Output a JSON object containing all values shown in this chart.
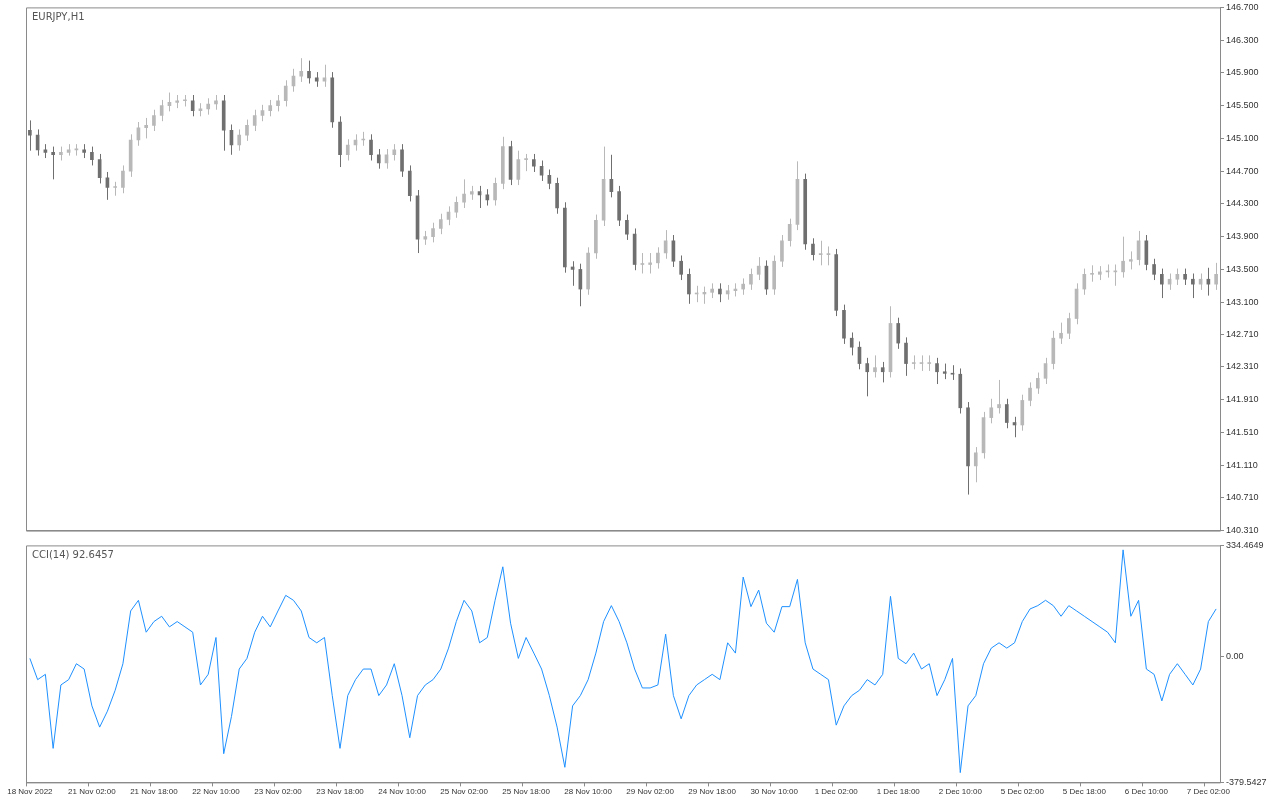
{
  "chart_data": [
    {
      "type": "candlestick",
      "title": "EURJPY,H1",
      "tick_labels": "y",
      "ylim": [
        140.31,
        146.7
      ],
      "yticks": [
        {
          "value": 146.7,
          "label": "146.700"
        },
        {
          "value": 146.3,
          "label": "146.300"
        },
        {
          "value": 145.9,
          "label": "145.900"
        },
        {
          "value": 145.5,
          "label": "145.500"
        },
        {
          "value": 145.1,
          "label": "145.100"
        },
        {
          "value": 144.7,
          "label": "144.700"
        },
        {
          "value": 144.3,
          "label": "144.300"
        },
        {
          "value": 143.9,
          "label": "143.900"
        },
        {
          "value": 143.5,
          "label": "143.500"
        },
        {
          "value": 143.1,
          "label": "143.100"
        },
        {
          "value": 142.71,
          "label": "142.710"
        },
        {
          "value": 142.31,
          "label": "142.310"
        },
        {
          "value": 141.91,
          "label": "141.910"
        },
        {
          "value": 141.51,
          "label": "141.510"
        },
        {
          "value": 141.11,
          "label": "141.110"
        },
        {
          "value": 140.71,
          "label": "140.710"
        },
        {
          "value": 140.31,
          "label": "140.310"
        }
      ],
      "ohlc": [
        [
          145.2,
          145.32,
          144.95,
          145.14
        ],
        [
          145.14,
          145.21,
          144.89,
          144.96
        ],
        [
          144.96,
          145.03,
          144.86,
          144.93
        ],
        [
          144.93,
          145.0,
          144.6,
          144.9
        ],
        [
          144.9,
          145.0,
          144.83,
          144.93
        ],
        [
          144.93,
          145.03,
          144.89,
          144.96
        ],
        [
          144.96,
          145.03,
          144.89,
          144.96
        ],
        [
          144.96,
          145.03,
          144.86,
          144.93
        ],
        [
          144.93,
          145.0,
          144.77,
          144.84
        ],
        [
          144.84,
          144.91,
          144.55,
          144.62
        ],
        [
          144.62,
          144.69,
          144.35,
          144.5
        ],
        [
          144.5,
          144.57,
          144.4,
          144.5
        ],
        [
          144.5,
          144.77,
          144.43,
          144.7
        ],
        [
          144.7,
          145.15,
          144.63,
          145.08
        ],
        [
          145.08,
          145.3,
          145.01,
          145.23
        ],
        [
          145.23,
          145.35,
          145.1,
          145.26
        ],
        [
          145.26,
          145.45,
          145.19,
          145.38
        ],
        [
          145.38,
          145.57,
          145.31,
          145.5
        ],
        [
          145.5,
          145.66,
          145.43,
          145.54
        ],
        [
          145.54,
          145.63,
          145.47,
          145.56
        ],
        [
          145.56,
          145.63,
          145.49,
          145.56
        ],
        [
          145.56,
          145.63,
          145.37,
          145.44
        ],
        [
          145.44,
          145.53,
          145.37,
          145.46
        ],
        [
          145.46,
          145.59,
          145.39,
          145.52
        ],
        [
          145.52,
          145.63,
          145.45,
          145.56
        ],
        [
          145.56,
          145.63,
          144.95,
          145.2
        ],
        [
          145.2,
          145.27,
          144.9,
          145.02
        ],
        [
          145.02,
          145.21,
          144.95,
          145.14
        ],
        [
          145.14,
          145.33,
          145.07,
          145.26
        ],
        [
          145.26,
          145.45,
          145.19,
          145.38
        ],
        [
          145.38,
          145.51,
          145.31,
          145.44
        ],
        [
          145.44,
          145.57,
          145.37,
          145.5
        ],
        [
          145.5,
          145.63,
          145.43,
          145.56
        ],
        [
          145.56,
          145.81,
          145.49,
          145.74
        ],
        [
          145.74,
          145.95,
          145.67,
          145.86
        ],
        [
          145.86,
          146.08,
          145.79,
          145.92
        ],
        [
          145.92,
          146.05,
          145.77,
          145.84
        ],
        [
          145.84,
          145.91,
          145.73,
          145.8
        ],
        [
          145.8,
          146.0,
          145.73,
          145.84
        ],
        [
          145.84,
          145.91,
          145.23,
          145.3
        ],
        [
          145.3,
          145.37,
          144.75,
          144.9
        ],
        [
          144.9,
          145.09,
          144.83,
          145.02
        ],
        [
          145.02,
          145.15,
          144.95,
          145.08
        ],
        [
          145.08,
          145.18,
          145.01,
          145.08
        ],
        [
          145.08,
          145.15,
          144.83,
          144.9
        ],
        [
          144.9,
          144.97,
          144.73,
          144.8
        ],
        [
          144.8,
          144.97,
          144.73,
          144.9
        ],
        [
          144.9,
          145.03,
          144.83,
          144.96
        ],
        [
          144.96,
          145.03,
          144.63,
          144.7
        ],
        [
          144.7,
          144.77,
          144.33,
          144.4
        ],
        [
          144.4,
          144.47,
          143.7,
          143.87
        ],
        [
          143.87,
          143.97,
          143.8,
          143.9
        ],
        [
          143.9,
          144.07,
          143.83,
          144.0
        ],
        [
          144.0,
          144.18,
          143.93,
          144.11
        ],
        [
          144.11,
          144.27,
          144.04,
          144.2
        ],
        [
          144.2,
          144.39,
          144.13,
          144.32
        ],
        [
          144.32,
          144.6,
          144.25,
          144.42
        ],
        [
          144.42,
          144.52,
          144.35,
          144.45
        ],
        [
          144.45,
          144.52,
          144.25,
          144.41
        ],
        [
          144.41,
          144.48,
          144.28,
          144.35
        ],
        [
          144.35,
          144.62,
          144.28,
          144.55
        ],
        [
          144.55,
          145.12,
          144.48,
          145.0
        ],
        [
          145.0,
          145.07,
          144.53,
          144.6
        ],
        [
          144.6,
          144.95,
          144.53,
          144.84
        ],
        [
          144.84,
          144.91,
          144.7,
          144.84
        ],
        [
          144.84,
          144.91,
          144.69,
          144.76
        ],
        [
          144.76,
          144.83,
          144.58,
          144.65
        ],
        [
          144.65,
          144.72,
          144.48,
          144.55
        ],
        [
          144.55,
          144.62,
          144.18,
          144.25
        ],
        [
          144.25,
          144.32,
          143.46,
          143.53
        ],
        [
          143.53,
          143.6,
          143.3,
          143.5
        ],
        [
          143.5,
          143.57,
          143.05,
          143.26
        ],
        [
          143.26,
          143.77,
          143.19,
          143.7
        ],
        [
          143.7,
          144.17,
          143.63,
          144.1
        ],
        [
          144.1,
          145.0,
          144.03,
          144.6
        ],
        [
          144.6,
          144.9,
          144.38,
          144.45
        ],
        [
          144.45,
          144.52,
          144.03,
          144.1
        ],
        [
          144.1,
          144.17,
          143.86,
          143.93
        ],
        [
          143.93,
          144.0,
          143.49,
          143.56
        ],
        [
          143.56,
          143.7,
          143.45,
          143.56
        ],
        [
          143.56,
          143.7,
          143.45,
          143.58
        ],
        [
          143.58,
          143.77,
          143.51,
          143.7
        ],
        [
          143.7,
          143.98,
          143.63,
          143.85
        ],
        [
          143.85,
          143.92,
          143.53,
          143.6
        ],
        [
          143.6,
          143.67,
          143.37,
          143.44
        ],
        [
          143.44,
          143.51,
          143.08,
          143.2
        ],
        [
          143.2,
          143.3,
          143.1,
          143.2
        ],
        [
          143.2,
          143.29,
          143.08,
          143.22
        ],
        [
          143.22,
          143.33,
          143.15,
          143.26
        ],
        [
          143.26,
          143.33,
          143.1,
          143.2
        ],
        [
          143.2,
          143.31,
          143.13,
          143.24
        ],
        [
          143.24,
          143.33,
          143.17,
          143.26
        ],
        [
          143.26,
          143.39,
          143.19,
          143.32
        ],
        [
          143.32,
          143.51,
          143.25,
          143.44
        ],
        [
          143.44,
          143.65,
          143.37,
          143.54
        ],
        [
          143.54,
          143.61,
          143.19,
          143.26
        ],
        [
          143.26,
          143.67,
          143.19,
          143.6
        ],
        [
          143.6,
          143.92,
          143.53,
          143.85
        ],
        [
          143.85,
          144.12,
          143.78,
          144.05
        ],
        [
          144.05,
          144.82,
          143.98,
          144.6
        ],
        [
          144.6,
          144.67,
          143.74,
          143.81
        ],
        [
          143.81,
          143.88,
          143.61,
          143.68
        ],
        [
          143.68,
          143.85,
          143.55,
          143.68
        ],
        [
          143.68,
          143.78,
          143.55,
          143.68
        ],
        [
          143.68,
          143.75,
          142.93,
          143.0
        ],
        [
          143.0,
          143.07,
          142.59,
          142.66
        ],
        [
          142.66,
          142.73,
          142.45,
          142.55
        ],
        [
          142.55,
          142.62,
          142.28,
          142.35
        ],
        [
          142.35,
          142.42,
          141.95,
          142.25
        ],
        [
          142.25,
          142.45,
          142.18,
          142.3
        ],
        [
          142.3,
          142.37,
          142.12,
          142.25
        ],
        [
          142.25,
          143.05,
          142.18,
          142.84
        ],
        [
          142.84,
          142.91,
          142.53,
          142.6
        ],
        [
          142.6,
          142.67,
          142.2,
          142.35
        ],
        [
          142.35,
          142.45,
          142.28,
          142.35
        ],
        [
          142.35,
          142.45,
          142.26,
          142.35
        ],
        [
          142.35,
          142.45,
          142.26,
          142.35
        ],
        [
          142.35,
          142.42,
          142.1,
          142.25
        ],
        [
          142.25,
          142.35,
          142.16,
          142.23
        ],
        [
          142.23,
          142.33,
          142.15,
          142.22
        ],
        [
          142.22,
          142.29,
          141.74,
          141.81
        ],
        [
          141.81,
          141.88,
          140.75,
          141.1
        ],
        [
          141.1,
          141.33,
          140.9,
          141.26
        ],
        [
          141.26,
          141.76,
          141.19,
          141.69
        ],
        [
          141.69,
          141.92,
          141.62,
          141.81
        ],
        [
          141.81,
          142.15,
          141.74,
          141.85
        ],
        [
          141.85,
          141.92,
          141.56,
          141.63
        ],
        [
          141.63,
          141.7,
          141.45,
          141.6
        ],
        [
          141.6,
          141.97,
          141.53,
          141.9
        ],
        [
          141.9,
          142.12,
          141.83,
          142.05
        ],
        [
          142.05,
          142.24,
          141.98,
          142.17
        ],
        [
          142.17,
          142.42,
          142.1,
          142.35
        ],
        [
          142.35,
          142.75,
          142.28,
          142.66
        ],
        [
          142.66,
          142.85,
          142.59,
          142.72
        ],
        [
          142.72,
          142.97,
          142.65,
          142.9
        ],
        [
          142.9,
          143.33,
          142.83,
          143.26
        ],
        [
          143.26,
          143.51,
          143.19,
          143.44
        ],
        [
          143.44,
          143.55,
          143.35,
          143.44
        ],
        [
          143.44,
          143.54,
          143.37,
          143.47
        ],
        [
          143.47,
          143.56,
          143.4,
          143.47
        ],
        [
          143.47,
          143.56,
          143.3,
          143.47
        ],
        [
          143.47,
          143.9,
          143.4,
          143.6
        ],
        [
          143.6,
          143.72,
          143.5,
          143.62
        ],
        [
          143.62,
          143.97,
          143.55,
          143.85
        ],
        [
          143.85,
          143.92,
          143.49,
          143.56
        ],
        [
          143.56,
          143.63,
          143.37,
          143.44
        ],
        [
          143.44,
          143.51,
          143.15,
          143.32
        ],
        [
          143.32,
          143.45,
          143.25,
          143.38
        ],
        [
          143.38,
          143.51,
          143.31,
          143.44
        ],
        [
          143.44,
          143.51,
          143.31,
          143.38
        ],
        [
          143.38,
          143.45,
          143.15,
          143.32
        ],
        [
          143.32,
          143.45,
          143.25,
          143.38
        ],
        [
          143.38,
          143.52,
          143.18,
          143.32
        ],
        [
          143.32,
          143.58,
          143.25,
          143.44
        ]
      ]
    },
    {
      "type": "line",
      "title": "CCI(14) 92.6457",
      "categories": [
        "18 Nov 2022",
        null,
        null,
        null,
        null,
        null,
        null,
        null,
        "21 Nov 02:00",
        null,
        null,
        null,
        null,
        null,
        null,
        null,
        "21 Nov 18:00",
        null,
        null,
        null,
        null,
        null,
        null,
        null,
        "22 Nov 10:00",
        null,
        null,
        null,
        null,
        null,
        null,
        null,
        "23 Nov 02:00",
        null,
        null,
        null,
        null,
        null,
        null,
        null,
        "23 Nov 18:00",
        null,
        null,
        null,
        null,
        null,
        null,
        null,
        "24 Nov 10:00",
        null,
        null,
        null,
        null,
        null,
        null,
        null,
        "25 Nov 02:00",
        null,
        null,
        null,
        null,
        null,
        null,
        null,
        "25 Nov 18:00",
        null,
        null,
        null,
        null,
        null,
        null,
        null,
        "28 Nov 10:00",
        null,
        null,
        null,
        null,
        null,
        null,
        null,
        "29 Nov 02:00",
        null,
        null,
        null,
        null,
        null,
        null,
        null,
        "29 Nov 18:00",
        null,
        null,
        null,
        null,
        null,
        null,
        null,
        "30 Nov 10:00",
        null,
        null,
        null,
        null,
        null,
        null,
        null,
        "1 Dec 02:00",
        null,
        null,
        null,
        null,
        null,
        null,
        null,
        "1 Dec 18:00",
        null,
        null,
        null,
        null,
        null,
        null,
        null,
        "2 Dec 10:00",
        null,
        null,
        null,
        null,
        null,
        null,
        null,
        "5 Dec 02:00",
        null,
        null,
        null,
        null,
        null,
        null,
        null,
        "5 Dec 18:00",
        null,
        null,
        null,
        null,
        null,
        null,
        null,
        "6 Dec 10:00",
        null,
        null,
        null,
        null,
        null,
        null,
        null,
        "7 Dec 02:00",
        null
      ],
      "ylim": [
        -379.5427,
        334.4649
      ],
      "yticks": [
        {
          "value": 334.4649,
          "label": "334.4649"
        },
        {
          "value": 0,
          "label": "0.00"
        },
        {
          "value": -379.5427,
          "label": "-379.5427"
        }
      ],
      "color": "#1e90ff",
      "values": [
        -6,
        -70,
        -54,
        -277,
        -86,
        -70,
        -22,
        -38,
        -149,
        -213,
        -165,
        -102,
        -22,
        137,
        169,
        73,
        105,
        121,
        89,
        105,
        89,
        73,
        -86,
        -54,
        57,
        -293,
        -181,
        -38,
        -6,
        73,
        121,
        89,
        137,
        184,
        169,
        137,
        57,
        41,
        57,
        -118,
        -277,
        -118,
        -70,
        -38,
        -38,
        -118,
        -86,
        -22,
        -118,
        -245,
        -118,
        -86,
        -70,
        -38,
        25,
        105,
        169,
        137,
        41,
        57,
        169,
        270,
        100,
        -6,
        57,
        10,
        -38,
        -118,
        -213,
        -334,
        -149,
        -118,
        -70,
        10,
        105,
        153,
        105,
        41,
        -38,
        -95,
        -95,
        -86,
        67,
        -118,
        -188,
        -118,
        -86,
        -70,
        -54,
        -70,
        41,
        10,
        239,
        150,
        200,
        100,
        73,
        150,
        150,
        232,
        41,
        -38,
        -54,
        -70,
        -207,
        -149,
        -118,
        -102,
        -70,
        -86,
        -54,
        181,
        -6,
        -22,
        10,
        -38,
        -22,
        -118,
        -70,
        -6,
        -350,
        -149,
        -118,
        -22,
        25,
        41,
        25,
        41,
        105,
        143,
        153,
        169,
        153,
        121,
        153,
        137,
        121,
        105,
        89,
        73,
        41,
        321,
        121,
        169,
        -38,
        -54,
        -134,
        -54,
        -22,
        -54,
        -86,
        -38,
        105,
        143
      ]
    }
  ]
}
